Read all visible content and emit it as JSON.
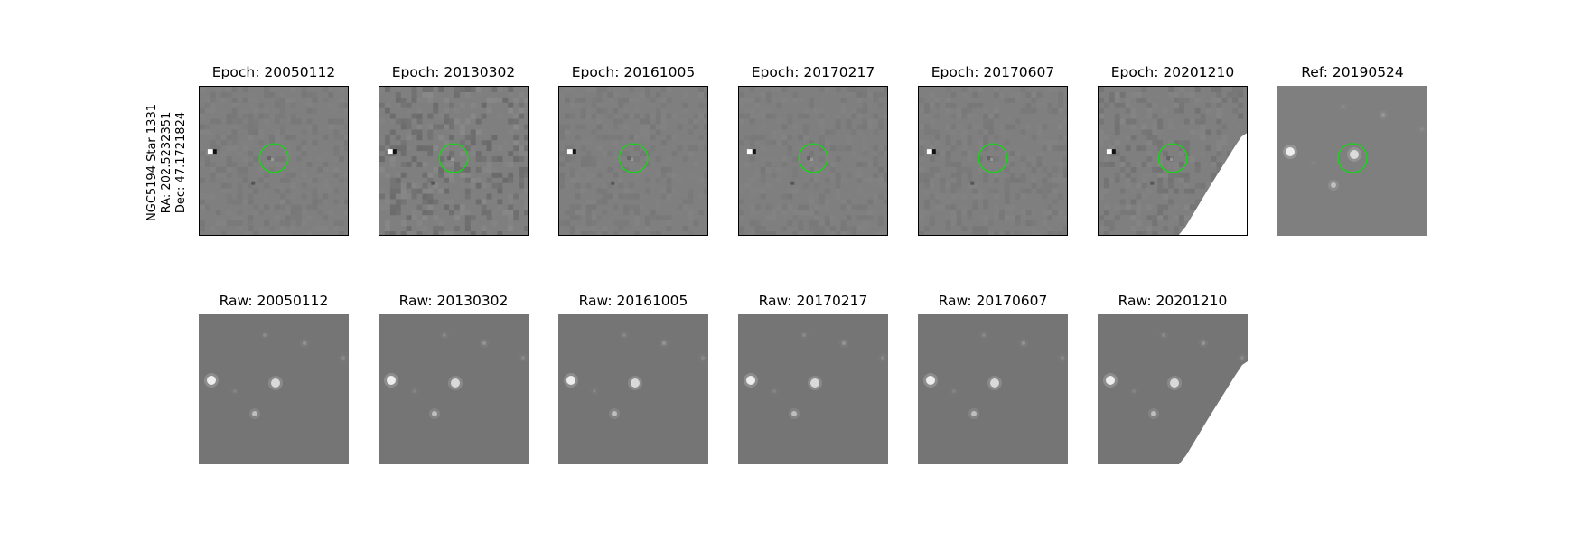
{
  "object": {
    "name": "NGC5194 Star 1331",
    "ra": "RA: 202.5232351",
    "dec": "Dec: 47.1721824"
  },
  "colors": {
    "background_gray": "#7f7f7f",
    "raw_gray": "#757575",
    "circle_green": "#22cc22",
    "frame_border": "#000000"
  },
  "epochs": [
    {
      "title": "Epoch: 20050112",
      "raw_title": "Raw: 20050112",
      "clip": false
    },
    {
      "title": "Epoch: 20130302",
      "raw_title": "Raw: 20130302",
      "clip": false
    },
    {
      "title": "Epoch: 20161005",
      "raw_title": "Raw: 20161005",
      "clip": false
    },
    {
      "title": "Epoch: 20170217",
      "raw_title": "Raw: 20170217",
      "clip": false
    },
    {
      "title": "Epoch: 20170607",
      "raw_title": "Raw: 20170607",
      "clip": false
    },
    {
      "title": "Epoch: 20201210",
      "raw_title": "Raw: 20201210",
      "clip": true
    }
  ],
  "reference": {
    "title": "Ref: 20190524"
  }
}
